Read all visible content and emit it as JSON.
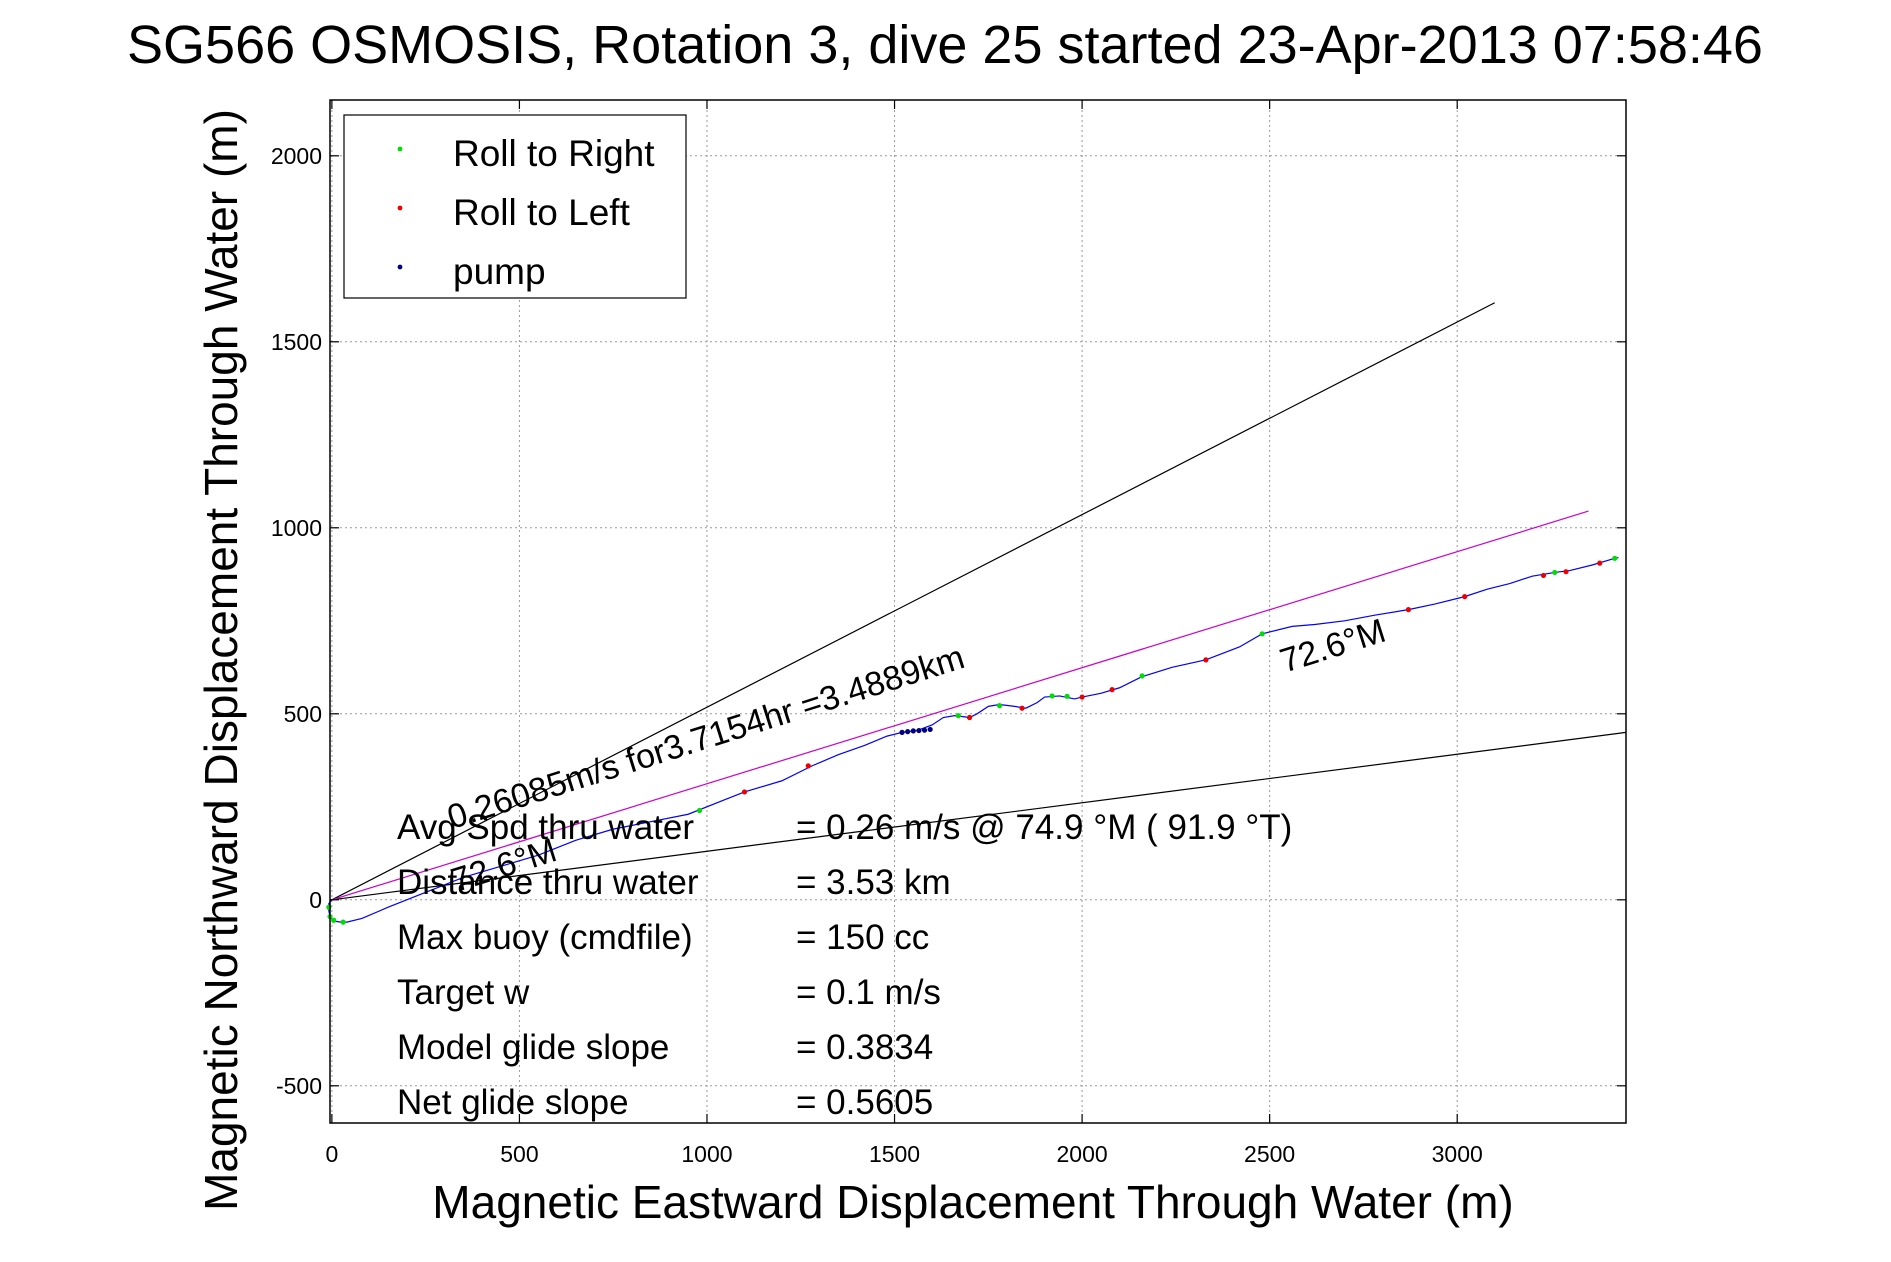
{
  "chart_data": {
    "type": "line",
    "title": "SG566 OSMOSIS, Rotation 3, dive 25 started 23-Apr-2013 07:58:46",
    "xlabel": "Magnetic Eastward Displacement Through Water (m)",
    "ylabel": "Magnetic Northward Displacement Through Water (m)",
    "xlim": [
      -5,
      3450
    ],
    "ylim": [
      -600,
      2150
    ],
    "xticks": [
      0,
      500,
      1000,
      1500,
      2000,
      2500,
      3000
    ],
    "yticks": [
      -500,
      0,
      500,
      1000,
      1500,
      2000
    ],
    "grid": true,
    "legend": {
      "position": "top-left",
      "entries": [
        {
          "label": "Roll to Right",
          "color": "#00dd00"
        },
        {
          "label": "Roll to Left",
          "color": "#ee0000"
        },
        {
          "label": "pump",
          "color": "#000080"
        }
      ]
    },
    "lines": [
      {
        "x": [
          0,
          3100
        ],
        "y": [
          0,
          1605
        ],
        "color": "#000000"
      },
      {
        "x": [
          0,
          3450
        ],
        "y": [
          0,
          450
        ],
        "color": "#000000"
      },
      {
        "x": [
          0,
          3350
        ],
        "y": [
          0,
          1045
        ],
        "color": "#cc00cc"
      }
    ],
    "track": {
      "color": "#0000ff",
      "x": [
        0,
        -8,
        -8,
        -5,
        0,
        10,
        25,
        40,
        80,
        150,
        250,
        350,
        450,
        550,
        650,
        750,
        850,
        950,
        1050,
        1100,
        1200,
        1280,
        1350,
        1420,
        1480,
        1520,
        1560,
        1600,
        1630,
        1660,
        1700,
        1720,
        1750,
        1780,
        1820,
        1850,
        1880,
        1900,
        1940,
        1980,
        2000,
        2050,
        2100,
        2160,
        2240,
        2330,
        2420,
        2480,
        2560,
        2620,
        2700,
        2780,
        2870,
        2940,
        3020,
        3080,
        3140,
        3200,
        3260,
        3300,
        3360,
        3410,
        3430
      ],
      "y": [
        0,
        -10,
        -30,
        -45,
        -52,
        -58,
        -60,
        -60,
        -50,
        -20,
        20,
        60,
        90,
        120,
        160,
        190,
        210,
        230,
        270,
        290,
        320,
        360,
        390,
        415,
        440,
        450,
        455,
        470,
        490,
        495,
        490,
        500,
        520,
        525,
        520,
        515,
        530,
        545,
        548,
        540,
        545,
        555,
        570,
        600,
        625,
        645,
        680,
        715,
        735,
        740,
        750,
        765,
        780,
        795,
        815,
        835,
        850,
        870,
        880,
        885,
        900,
        915,
        920
      ]
    },
    "markers": {
      "roll_right": {
        "color": "#00dd00",
        "x": [
          -8,
          -5,
          5,
          30,
          980,
          1670,
          1700,
          1780,
          1920,
          1960,
          2160,
          2480,
          3260,
          3420
        ],
        "y": [
          -20,
          -45,
          -55,
          -60,
          240,
          495,
          490,
          522,
          548,
          547,
          602,
          715,
          880,
          918
        ]
      },
      "roll_left": {
        "color": "#ee0000",
        "x": [
          1100,
          1270,
          1700,
          1840,
          2000,
          2080,
          2330,
          2870,
          3020,
          3230,
          3290,
          3380
        ],
        "y": [
          290,
          360,
          490,
          515,
          545,
          565,
          645,
          780,
          815,
          872,
          882,
          905
        ]
      },
      "pump": {
        "color": "#000080",
        "x": [
          1520,
          1535,
          1550,
          1565,
          1580,
          1595
        ],
        "y": [
          450,
          452,
          454,
          455,
          456,
          458
        ]
      }
    },
    "annotations": {
      "speed_text": "0.26085m/s for3.7154hr =3.4889km",
      "heading_label_1": "72.6°M",
      "heading_label_2": "72.6°M"
    },
    "stats": [
      {
        "label": "Avg Spd thru water",
        "value": "=  0.26 m/s @  74.9 °M ( 91.9 °T)"
      },
      {
        "label": "Distance thru water",
        "value": "=  3.53 km"
      },
      {
        "label": "Max buoy (cmdfile)",
        "value": "= 150 cc"
      },
      {
        "label": "Target w",
        "value": "= 0.1 m/s"
      },
      {
        "label": "Model glide slope",
        "value": "= 0.3834"
      },
      {
        "label": "Net glide slope",
        "value": "= 0.5605"
      }
    ]
  }
}
